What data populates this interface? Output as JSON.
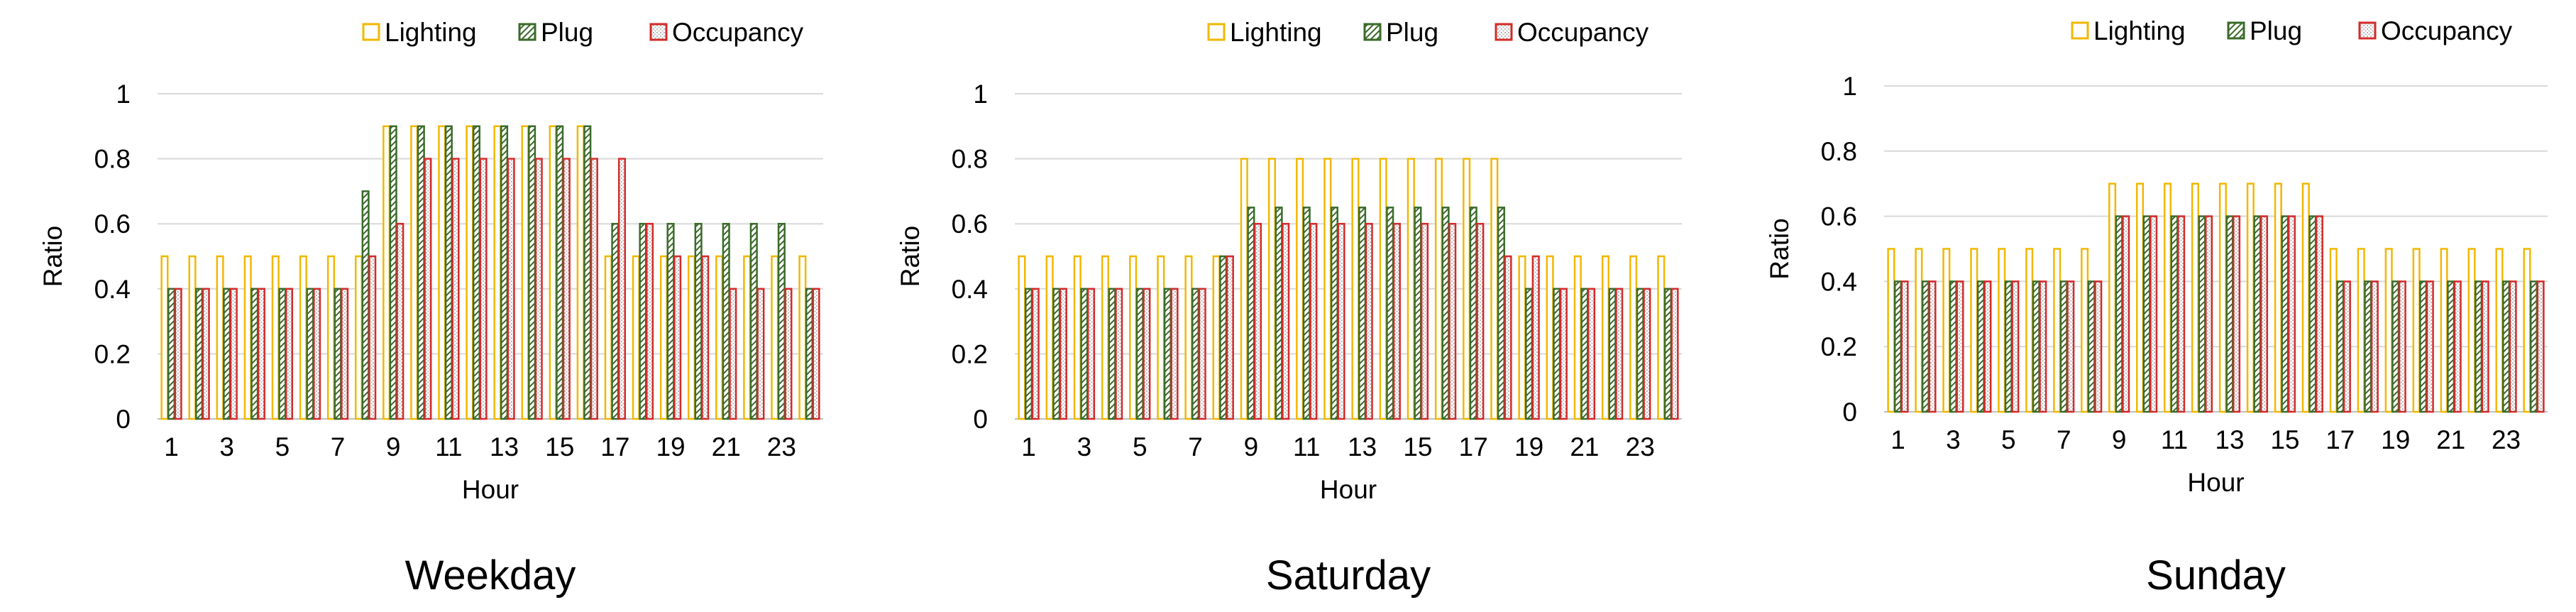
{
  "chart_data": [
    {
      "type": "bar",
      "title": "Weekday",
      "xlabel": "Hour",
      "ylabel": "Ratio",
      "ylim": [
        0,
        1
      ],
      "yticks": [
        "0",
        "0.2",
        "0.4",
        "0.6",
        "0.8",
        "1"
      ],
      "categories": [
        "1",
        "2",
        "3",
        "4",
        "5",
        "6",
        "7",
        "8",
        "9",
        "10",
        "11",
        "12",
        "13",
        "14",
        "15",
        "16",
        "17",
        "18",
        "19",
        "20",
        "21",
        "22",
        "23",
        "24"
      ],
      "xtick_labels": [
        "1",
        "3",
        "5",
        "7",
        "9",
        "11",
        "13",
        "15",
        "17",
        "19",
        "21",
        "23"
      ],
      "grid": true,
      "legend_position": "top-right",
      "series": [
        {
          "name": "Lighting",
          "values": [
            0.5,
            0.5,
            0.5,
            0.5,
            0.5,
            0.5,
            0.5,
            0.5,
            0.9,
            0.9,
            0.9,
            0.9,
            0.9,
            0.9,
            0.9,
            0.9,
            0.5,
            0.5,
            0.5,
            0.5,
            0.5,
            0.5,
            0.5,
            0.5
          ]
        },
        {
          "name": "Plug",
          "values": [
            0.4,
            0.4,
            0.4,
            0.4,
            0.4,
            0.4,
            0.4,
            0.7,
            0.9,
            0.9,
            0.9,
            0.9,
            0.9,
            0.9,
            0.9,
            0.9,
            0.6,
            0.6,
            0.6,
            0.6,
            0.6,
            0.6,
            0.6,
            0.4
          ]
        },
        {
          "name": "Occupancy",
          "values": [
            0.4,
            0.4,
            0.4,
            0.4,
            0.4,
            0.4,
            0.4,
            0.5,
            0.6,
            0.8,
            0.8,
            0.8,
            0.8,
            0.8,
            0.8,
            0.8,
            0.8,
            0.6,
            0.5,
            0.5,
            0.4,
            0.4,
            0.4,
            0.4
          ]
        }
      ]
    },
    {
      "type": "bar",
      "title": "Saturday",
      "xlabel": "Hour",
      "ylabel": "Ratio",
      "ylim": [
        0,
        1
      ],
      "yticks": [
        "0",
        "0.2",
        "0.4",
        "0.6",
        "0.8",
        "1"
      ],
      "categories": [
        "1",
        "2",
        "3",
        "4",
        "5",
        "6",
        "7",
        "8",
        "9",
        "10",
        "11",
        "12",
        "13",
        "14",
        "15",
        "16",
        "17",
        "18",
        "19",
        "20",
        "21",
        "22",
        "23",
        "24"
      ],
      "xtick_labels": [
        "1",
        "3",
        "5",
        "7",
        "9",
        "11",
        "13",
        "15",
        "17",
        "19",
        "21",
        "23"
      ],
      "grid": true,
      "legend_position": "top-right",
      "series": [
        {
          "name": "Lighting",
          "values": [
            0.5,
            0.5,
            0.5,
            0.5,
            0.5,
            0.5,
            0.5,
            0.5,
            0.8,
            0.8,
            0.8,
            0.8,
            0.8,
            0.8,
            0.8,
            0.8,
            0.8,
            0.8,
            0.5,
            0.5,
            0.5,
            0.5,
            0.5,
            0.5
          ]
        },
        {
          "name": "Plug",
          "values": [
            0.4,
            0.4,
            0.4,
            0.4,
            0.4,
            0.4,
            0.4,
            0.5,
            0.65,
            0.65,
            0.65,
            0.65,
            0.65,
            0.65,
            0.65,
            0.65,
            0.65,
            0.65,
            0.4,
            0.4,
            0.4,
            0.4,
            0.4,
            0.4
          ]
        },
        {
          "name": "Occupancy",
          "values": [
            0.4,
            0.4,
            0.4,
            0.4,
            0.4,
            0.4,
            0.4,
            0.5,
            0.6,
            0.6,
            0.6,
            0.6,
            0.6,
            0.6,
            0.6,
            0.6,
            0.6,
            0.5,
            0.5,
            0.4,
            0.4,
            0.4,
            0.4,
            0.4
          ]
        }
      ]
    },
    {
      "type": "bar",
      "title": "Sunday",
      "xlabel": "Hour",
      "ylabel": "Ratio",
      "ylim": [
        0,
        1
      ],
      "yticks": [
        "0",
        "0.2",
        "0.4",
        "0.6",
        "0.8",
        "1"
      ],
      "categories": [
        "1",
        "2",
        "3",
        "4",
        "5",
        "6",
        "7",
        "8",
        "9",
        "10",
        "11",
        "12",
        "13",
        "14",
        "15",
        "16",
        "17",
        "18",
        "19",
        "20",
        "21",
        "22",
        "23",
        "24"
      ],
      "xtick_labels": [
        "1",
        "3",
        "5",
        "7",
        "9",
        "11",
        "13",
        "15",
        "17",
        "19",
        "21",
        "23"
      ],
      "grid": true,
      "legend_position": "top-right",
      "series": [
        {
          "name": "Lighting",
          "values": [
            0.5,
            0.5,
            0.5,
            0.5,
            0.5,
            0.5,
            0.5,
            0.5,
            0.7,
            0.7,
            0.7,
            0.7,
            0.7,
            0.7,
            0.7,
            0.7,
            0.5,
            0.5,
            0.5,
            0.5,
            0.5,
            0.5,
            0.5,
            0.5
          ]
        },
        {
          "name": "Plug",
          "values": [
            0.4,
            0.4,
            0.4,
            0.4,
            0.4,
            0.4,
            0.4,
            0.4,
            0.6,
            0.6,
            0.6,
            0.6,
            0.6,
            0.6,
            0.6,
            0.6,
            0.4,
            0.4,
            0.4,
            0.4,
            0.4,
            0.4,
            0.4,
            0.4
          ]
        },
        {
          "name": "Occupancy",
          "values": [
            0.4,
            0.4,
            0.4,
            0.4,
            0.4,
            0.4,
            0.4,
            0.4,
            0.6,
            0.6,
            0.6,
            0.6,
            0.6,
            0.6,
            0.6,
            0.6,
            0.4,
            0.4,
            0.4,
            0.4,
            0.4,
            0.4,
            0.4,
            0.4
          ]
        }
      ]
    }
  ],
  "colors": {
    "lighting": "#f2b700",
    "plug": "#3a6b2a",
    "occupancy": "#d42a2a",
    "grid": "#d9d9d9"
  }
}
